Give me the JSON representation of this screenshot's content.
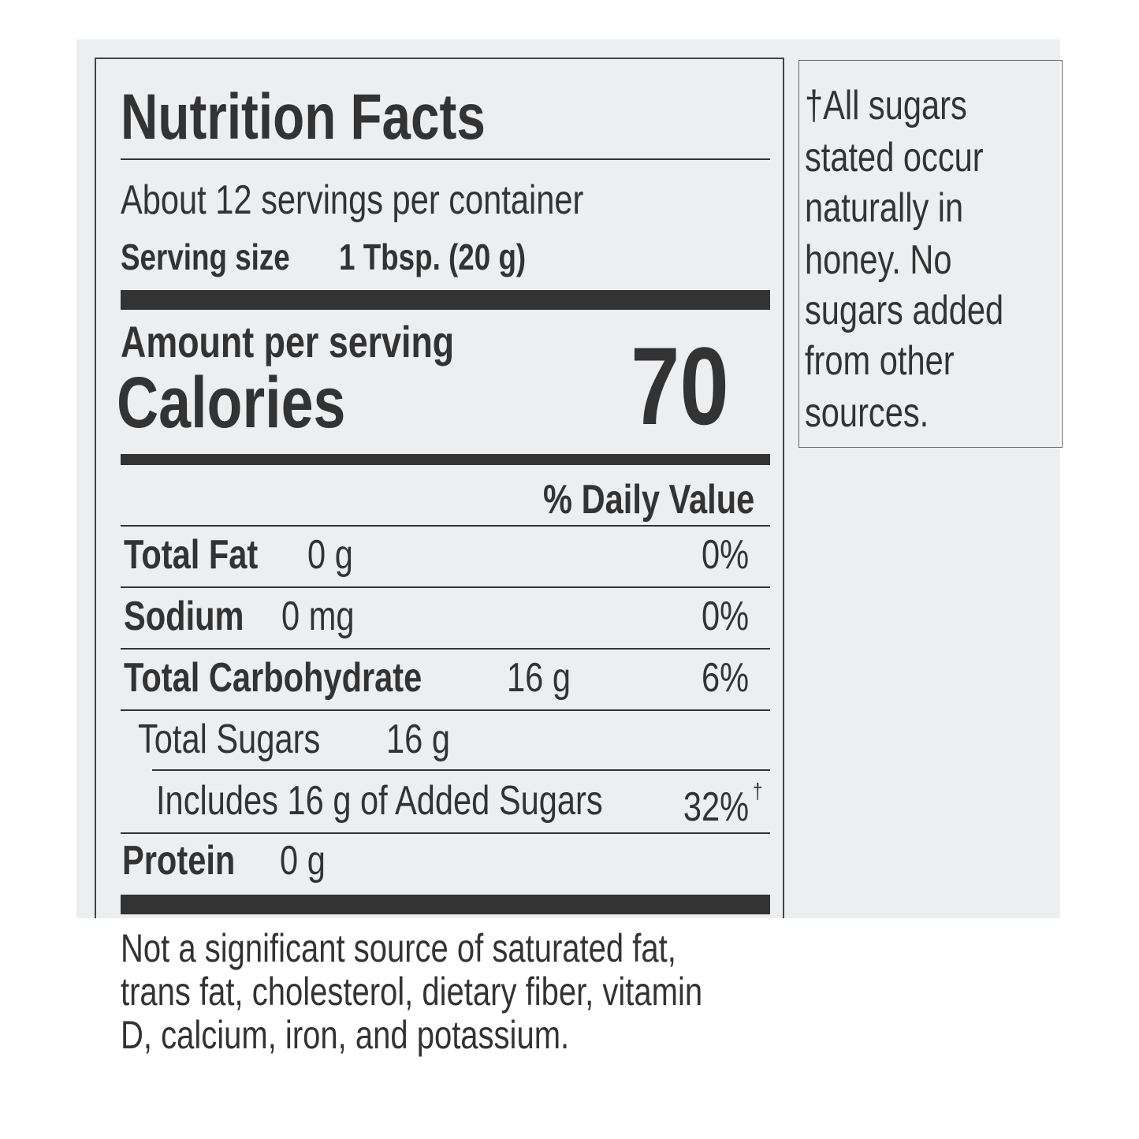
{
  "title": "Nutrition Facts",
  "servings_per_container": "About 12 servings per container",
  "serving_size_label": "Serving size",
  "serving_size_value": "1 Tbsp. (20 g)",
  "amount_per_serving": "Amount per serving",
  "calories_label": "Calories",
  "calories_value": "70",
  "daily_value_header": "% Daily Value",
  "nutrients": [
    {
      "name": "Total Fat",
      "amount": "0 g",
      "dv": "0%"
    },
    {
      "name": "Sodium",
      "amount": "0 mg",
      "dv": "0%"
    },
    {
      "name": "Total Carbohydrate",
      "amount": "16 g",
      "dv": "6%"
    },
    {
      "name": "Total Sugars",
      "amount": "16 g",
      "dv": ""
    },
    {
      "name": "Includes 16 g of Added Sugars",
      "amount": "",
      "dv": "32%",
      "mark": "†"
    },
    {
      "name": "Protein",
      "amount": "0 g",
      "dv": ""
    }
  ],
  "footnote_lines": [
    "Not a significant source of saturated fat,",
    "trans fat, cholesterol, dietary fiber, vitamin",
    "D, calcium, iron, and potassium."
  ],
  "side_note_lines": [
    "†All sugars",
    "stated occur",
    "naturally in",
    "honey. No",
    "sugars added",
    "from other",
    "sources."
  ]
}
